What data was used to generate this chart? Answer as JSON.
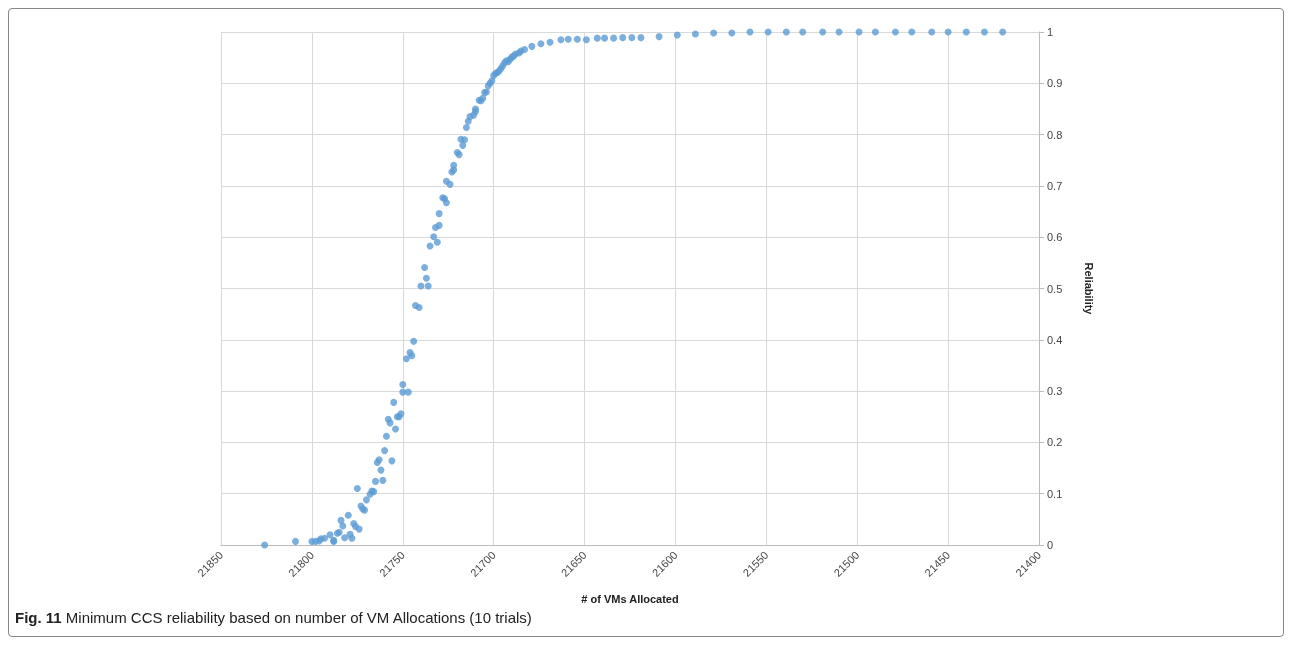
{
  "chart_data": {
    "type": "scatter",
    "xlabel": "# of VMs Allocated",
    "ylabel": "Reliability",
    "annotations": [
      "Fig. 11 Minimum CCS reliability based on number of VM Allocations (10 trials)"
    ],
    "xlim": [
      21850,
      21400
    ],
    "xticks": [
      21850,
      21800,
      21750,
      21700,
      21650,
      21600,
      21550,
      21500,
      21450,
      21400
    ],
    "ylim": [
      0,
      1
    ],
    "yticks": [
      0,
      0.1,
      0.2,
      0.3,
      0.4,
      0.5,
      0.6,
      0.7,
      0.8,
      0.9,
      1
    ],
    "grid": true,
    "marker": "circle",
    "series": [
      {
        "color": "#5b9bd5",
        "x": [
          21826,
          21809,
          21800,
          21798,
          21796,
          21795,
          21793,
          21790,
          21788,
          21788,
          21786,
          21785,
          21784,
          21783,
          21782,
          21780,
          21779,
          21778,
          21777,
          21776,
          21775,
          21774,
          21773,
          21772,
          21771,
          21770,
          21768,
          21767,
          21766,
          21765,
          21761,
          21762,
          21764,
          21763,
          21760,
          21756,
          21759,
          21758,
          21757,
          21754,
          21753,
          21752,
          21751,
          21755,
          21750,
          21750,
          21747,
          21748,
          21746,
          21745,
          21744,
          21743,
          21741,
          21740,
          21736,
          21737,
          21738,
          21735,
          21733,
          21731,
          21732,
          21730,
          21730,
          21728,
          21727,
          21726,
          21726,
          21724,
          21723,
          21722,
          21722,
          21720,
          21719,
          21717,
          21718,
          21716,
          21715,
          21714,
          21713,
          21711,
          21710,
          21710,
          21708,
          21707,
          21706,
          21705,
          21704,
          21703,
          21702,
          21701,
          21700,
          21699,
          21698,
          21697,
          21696,
          21695,
          21694,
          21693,
          21692,
          21691,
          21690,
          21689,
          21688,
          21686,
          21685,
          21683,
          21679,
          21674,
          21669,
          21663,
          21659,
          21654,
          21649,
          21643,
          21639,
          21634,
          21629,
          21624,
          21619,
          21609,
          21599,
          21589,
          21579,
          21569,
          21559,
          21549,
          21539,
          21530,
          21519,
          21510,
          21499,
          21490,
          21479,
          21470,
          21459,
          21450,
          21440,
          21430,
          21420
        ],
        "values": [
          0,
          0.007,
          0.007,
          0.007,
          0.008,
          0.012,
          0.013,
          0.02,
          0.007,
          0.009,
          0.023,
          0.025,
          0.048,
          0.037,
          0.014,
          0.058,
          0.021,
          0.013,
          0.042,
          0.036,
          0.11,
          0.031,
          0.076,
          0.07,
          0.068,
          0.088,
          0.099,
          0.105,
          0.104,
          0.124,
          0.126,
          0.146,
          0.161,
          0.166,
          0.184,
          0.164,
          0.212,
          0.245,
          0.238,
          0.226,
          0.25,
          0.25,
          0.256,
          0.278,
          0.313,
          0.298,
          0.298,
          0.363,
          0.375,
          0.369,
          0.397,
          0.467,
          0.463,
          0.505,
          0.505,
          0.52,
          0.541,
          0.583,
          0.601,
          0.59,
          0.619,
          0.623,
          0.646,
          0.677,
          0.675,
          0.667,
          0.709,
          0.703,
          0.727,
          0.74,
          0.731,
          0.765,
          0.761,
          0.779,
          0.791,
          0.79,
          0.814,
          0.826,
          0.835,
          0.838,
          0.845,
          0.85,
          0.867,
          0.866,
          0.871,
          0.882,
          0.883,
          0.895,
          0.9,
          0.905,
          0.915,
          0.919,
          0.921,
          0.924,
          0.929,
          0.934,
          0.94,
          0.944,
          0.942,
          0.947,
          0.951,
          0.953,
          0.957,
          0.959,
          0.963,
          0.966,
          0.972,
          0.977,
          0.98,
          0.985,
          0.986,
          0.986,
          0.985,
          0.988,
          0.988,
          0.988,
          0.989,
          0.989,
          0.989,
          0.991,
          0.994,
          0.996,
          0.998,
          0.998,
          1,
          1,
          1,
          1,
          1,
          1,
          1,
          1,
          1,
          1,
          1,
          1,
          1,
          1,
          1
        ]
      }
    ]
  }
}
